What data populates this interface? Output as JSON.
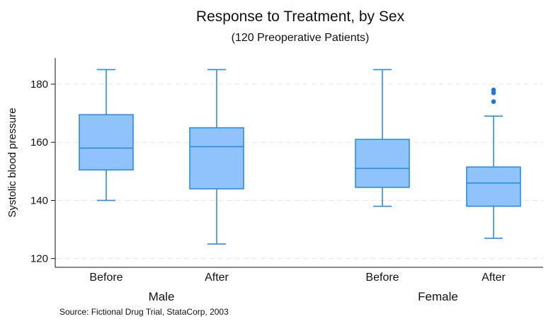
{
  "colors": {
    "box_fill": "#90c2fb",
    "box_stroke": "#2d8ee0",
    "outlier": "#1f78d9",
    "grid": "#e6e6e6",
    "text": "#111111"
  },
  "chart_data": {
    "type": "box",
    "title": "Response to Treatment, by Sex",
    "subtitle": "(120 Preoperative Patients)",
    "ylabel": "Systolic blood pressure",
    "xlabel": "",
    "note": "Source: Fictional Drug Trial, StataCorp, 2003",
    "ylim": [
      117,
      189
    ],
    "yticks": [
      120,
      140,
      160,
      180
    ],
    "grid": true,
    "legend": "none",
    "groups": [
      {
        "name": "Male",
        "boxes": [
          {
            "label": "Before",
            "whisker_low": 140,
            "q1": 150.5,
            "median": 158,
            "q3": 169.5,
            "whisker_high": 185,
            "outliers": []
          },
          {
            "label": "After",
            "whisker_low": 125,
            "q1": 144,
            "median": 158.5,
            "q3": 165,
            "whisker_high": 185,
            "outliers": []
          }
        ]
      },
      {
        "name": "Female",
        "boxes": [
          {
            "label": "Before",
            "whisker_low": 138,
            "q1": 144.5,
            "median": 151,
            "q3": 161,
            "whisker_high": 185,
            "outliers": []
          },
          {
            "label": "After",
            "whisker_low": 127,
            "q1": 138,
            "median": 146,
            "q3": 151.5,
            "whisker_high": 169,
            "outliers": [
              174,
              177,
              178
            ]
          }
        ]
      }
    ]
  }
}
